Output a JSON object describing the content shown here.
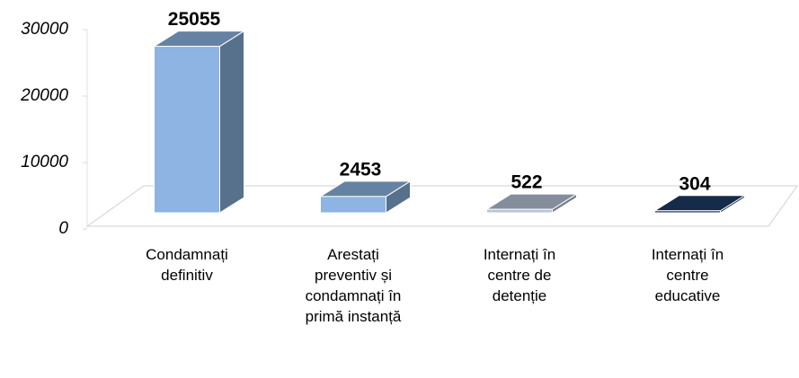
{
  "chart_data": {
    "type": "bar3d",
    "categories": [
      "Condamnați definitiv",
      "Arestați preventiv și condamnați în primă instanță",
      "Internați în centre de detenție",
      "Internați în centre educative"
    ],
    "values": [
      25055,
      2453,
      522,
      304
    ],
    "colors": [
      "#8db4e2",
      "#8db4e2",
      "#b8c4d8",
      "#1f3b66"
    ],
    "ylim": [
      0,
      30000
    ],
    "yticks": [
      0,
      10000,
      20000,
      30000
    ]
  }
}
